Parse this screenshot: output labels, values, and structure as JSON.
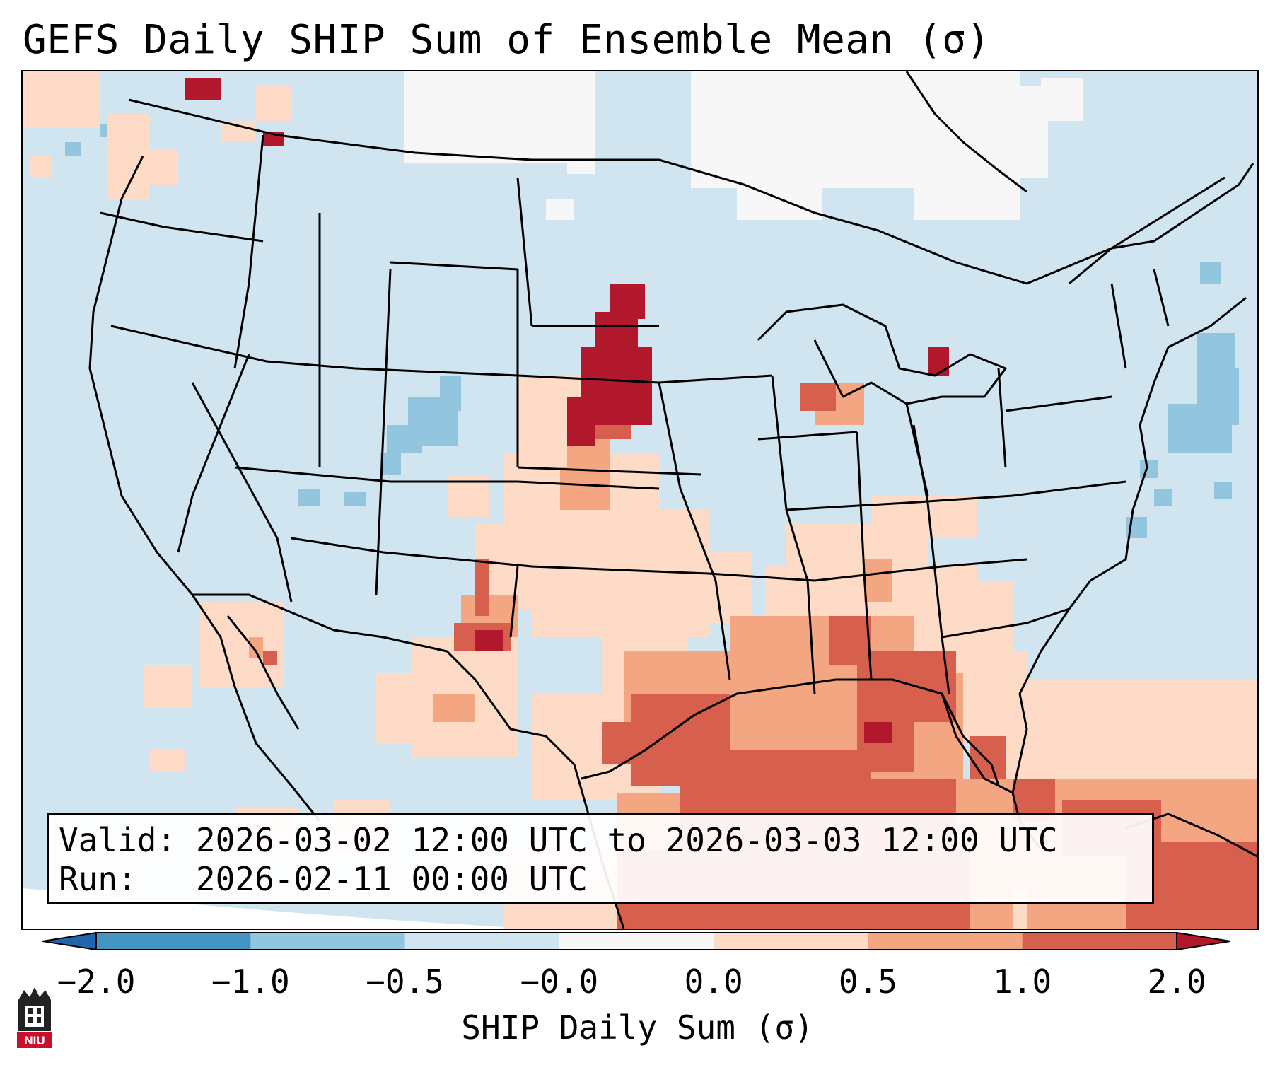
{
  "title": "GEFS Daily SHIP Sum of Ensemble Mean (σ)",
  "info": {
    "valid_label": "Valid:",
    "valid_value": "2026-03-02 12:00 UTC to 2026-03-03 12:00 UTC",
    "run_label": "Run:",
    "run_value": "2026-02-11 00:00 UTC"
  },
  "colorbar": {
    "label": "SHIP Daily Sum (σ)",
    "ticks": [
      "−2.0",
      "−1.0",
      "−0.5",
      "−0.0",
      "0.0",
      "0.5",
      "1.0",
      "2.0"
    ],
    "bins": [
      {
        "range": "−2.0 to −1.0",
        "color": "#4393c3"
      },
      {
        "range": "−1.0 to −0.5",
        "color": "#92c5de"
      },
      {
        "range": "−0.5 to −0.0",
        "color": "#d1e5f0"
      },
      {
        "range": "−0.0 to 0.0",
        "color": "#f7f7f7"
      },
      {
        "range": "0.0 to 0.5",
        "color": "#fddbc7"
      },
      {
        "range": "0.5 to 1.0",
        "color": "#f4a582"
      },
      {
        "range": "1.0 to 2.0",
        "color": "#d6604d"
      }
    ],
    "under_color": "#2166ac",
    "over_color": "#b2182b"
  },
  "logo": {
    "text": "NIU",
    "icon": "niu-building-icon"
  }
}
